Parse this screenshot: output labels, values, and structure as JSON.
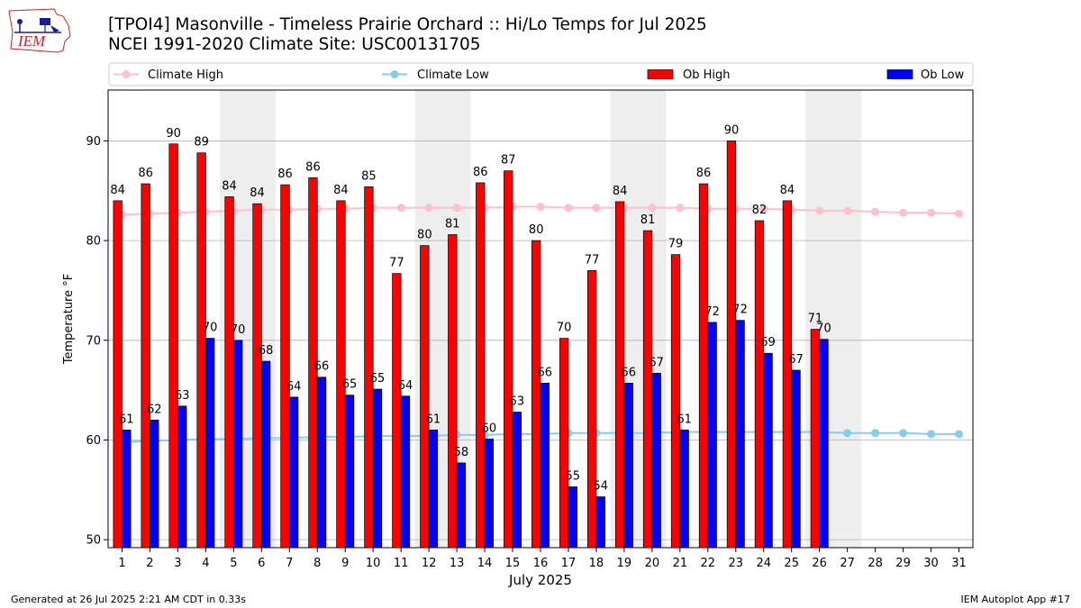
{
  "header": {
    "logo_text": "IEM",
    "title_line1": "[TPOI4] Masonville - Timeless Prairie Orchard :: Hi/Lo Temps for Jul 2025",
    "title_line2": "NCEI 1991-2020 Climate Site: USC00131705"
  },
  "footer": {
    "generated": "Generated at 26 Jul 2025 2:21 AM CDT in 0.33s",
    "app": "IEM Autoplot App #17"
  },
  "colors": {
    "ob_high": "#ff0000",
    "ob_low": "#0000ff",
    "climate_high": "#ffc0cb",
    "climate_low": "#87ceeb",
    "weekend_shade": "#eeeeee",
    "grid": "#b0b0b0"
  },
  "chart_data": {
    "type": "bar",
    "xlabel": "July 2025",
    "ylabel": "Temperature °F",
    "ylim": [
      49.2,
      95.1
    ],
    "yticks": [
      50,
      60,
      70,
      80,
      90
    ],
    "grid": "horizontal",
    "legend_position": "top",
    "categories": [
      "1",
      "2",
      "3",
      "4",
      "5",
      "6",
      "7",
      "8",
      "9",
      "10",
      "11",
      "12",
      "13",
      "14",
      "15",
      "16",
      "17",
      "18",
      "19",
      "20",
      "21",
      "22",
      "23",
      "24",
      "25",
      "26",
      "27",
      "28",
      "29",
      "30",
      "31"
    ],
    "shaded_days": [
      [
        "5",
        "6"
      ],
      [
        "12",
        "13"
      ],
      [
        "19",
        "20"
      ],
      [
        "26",
        "27"
      ]
    ],
    "series": [
      {
        "name": "Ob High",
        "kind": "bar",
        "values": [
          84,
          85.7,
          89.7,
          88.8,
          84.4,
          83.7,
          85.6,
          86.3,
          84,
          85.4,
          76.7,
          79.5,
          80.6,
          85.8,
          87,
          80,
          70.2,
          77,
          83.9,
          81,
          78.6,
          85.7,
          90,
          82,
          84,
          71.1,
          null,
          null,
          null,
          null,
          null
        ],
        "labels": [
          "84",
          "86",
          "90",
          "89",
          "84",
          "84",
          "86",
          "86",
          "84",
          "85",
          "77",
          "80",
          "81",
          "86",
          "87",
          "80",
          "70",
          "77",
          "84",
          "81",
          "79",
          "86",
          "90",
          "82",
          "84",
          "71",
          "",
          "",
          "",
          "",
          ""
        ]
      },
      {
        "name": "Ob Low",
        "kind": "bar",
        "values": [
          61,
          62,
          63.4,
          70.2,
          70,
          67.9,
          64.3,
          66.3,
          64.5,
          65.1,
          64.4,
          61,
          57.7,
          60.1,
          62.8,
          65.7,
          55.3,
          54.3,
          65.7,
          66.7,
          61,
          71.8,
          72,
          68.7,
          67,
          70.1,
          null,
          null,
          null,
          null,
          null
        ],
        "labels": [
          "61",
          "62",
          "63",
          "70",
          "70",
          "68",
          "64",
          "66",
          "65",
          "65",
          "64",
          "61",
          "58",
          "60",
          "63",
          "66",
          "55",
          "54",
          "66",
          "67",
          "61",
          "72",
          "72",
          "69",
          "67",
          "70",
          "",
          "",
          "",
          "",
          ""
        ]
      },
      {
        "name": "Climate High",
        "kind": "line",
        "values": [
          82.6,
          82.7,
          82.8,
          82.9,
          83.0,
          83.1,
          83.1,
          83.2,
          83.2,
          83.3,
          83.3,
          83.3,
          83.3,
          83.3,
          83.4,
          83.4,
          83.3,
          83.3,
          83.3,
          83.3,
          83.3,
          83.2,
          83.2,
          83.2,
          83.1,
          83.0,
          83.0,
          82.9,
          82.8,
          82.8,
          82.7
        ]
      },
      {
        "name": "Climate Low",
        "kind": "line",
        "values": [
          59.8,
          59.9,
          60.0,
          60.1,
          60.1,
          60.2,
          60.2,
          60.3,
          60.3,
          60.4,
          60.4,
          60.4,
          60.5,
          60.5,
          60.6,
          60.6,
          60.7,
          60.7,
          60.7,
          60.7,
          60.8,
          60.8,
          60.8,
          60.8,
          60.8,
          60.8,
          60.7,
          60.7,
          60.7,
          60.6,
          60.6
        ]
      }
    ]
  }
}
